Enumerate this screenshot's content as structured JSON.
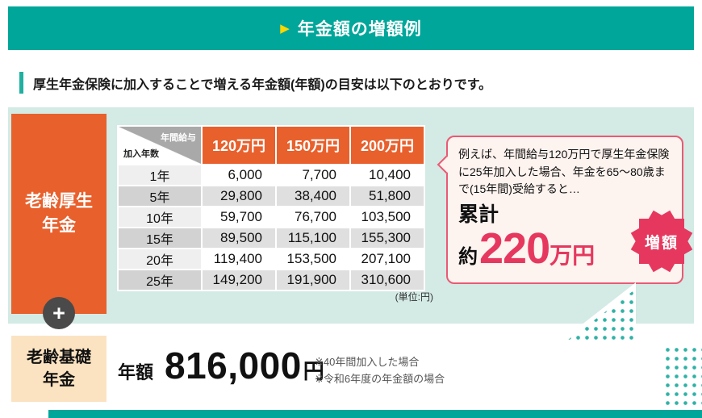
{
  "header": {
    "arrow": "▶",
    "title": "年金額の増額例"
  },
  "intro": {
    "text": "厚生年金保険に加入することで増える年金額(年額)の目安は以下のとおりです。"
  },
  "main": {
    "left_label": {
      "line1": "老齢厚生",
      "line2": "年金"
    },
    "plus": "+",
    "table": {
      "corner": {
        "top": "年間給与",
        "bottom": "加入年数"
      },
      "columns": [
        "120万円",
        "150万円",
        "200万円"
      ],
      "rows": [
        {
          "years": "1年",
          "values": [
            "6,000",
            "7,700",
            "10,400"
          ]
        },
        {
          "years": "5年",
          "values": [
            "29,800",
            "38,400",
            "51,800"
          ]
        },
        {
          "years": "10年",
          "values": [
            "59,700",
            "76,700",
            "103,500"
          ]
        },
        {
          "years": "15年",
          "values": [
            "89,500",
            "115,100",
            "155,300"
          ]
        },
        {
          "years": "20年",
          "values": [
            "119,400",
            "153,500",
            "207,100"
          ]
        },
        {
          "years": "25年",
          "values": [
            "149,200",
            "191,900",
            "310,600"
          ]
        }
      ],
      "unit_note": "(単位:円)"
    },
    "bubble": {
      "text": "例えば、年間給与120万円で厚生年金保険に25年加入した場合、年金を65〜80歳まで(15年間)受給すると…",
      "cumulative_label": "累計",
      "approx": "約",
      "amount": "220",
      "amount_unit": "万円",
      "badge": "増額"
    }
  },
  "basic": {
    "label": {
      "line1": "老齢基礎",
      "line2": "年金"
    },
    "annual_label": "年額",
    "amount": "816,000",
    "unit": "円",
    "notes": [
      "※40年間加入した場合",
      "※令和6年度の年金額の場合"
    ]
  },
  "colors": {
    "teal": "#00A69A",
    "orange": "#E8602C",
    "pink": "#E6385F",
    "mint": "#D3EAE5",
    "cream": "#FBE3C1",
    "yellow": "#FFD600"
  }
}
